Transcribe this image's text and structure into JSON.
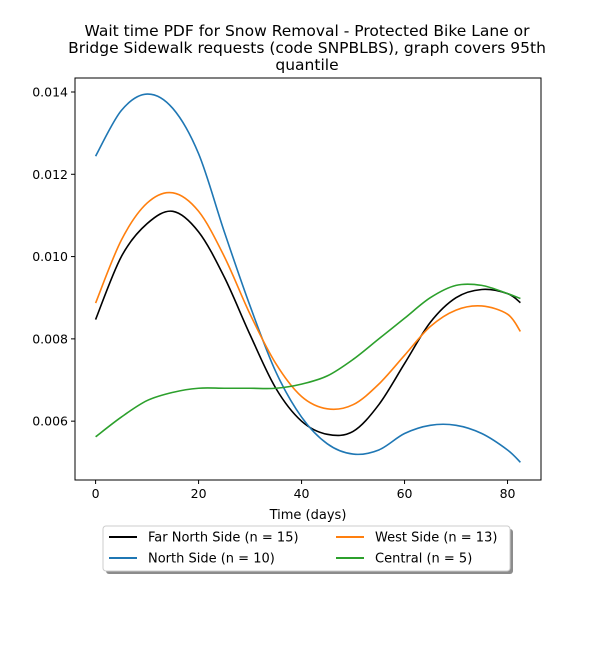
{
  "chart_data": {
    "type": "line",
    "title_lines": [
      "Wait time PDF for Snow Removal - Protected Bike Lane or",
      "Bridge Sidewalk  requests (code SNPBLBS), graph covers 95th",
      "quantile"
    ],
    "xlabel": "Time (days)",
    "ylabel": "",
    "xlim": [
      -4,
      86.5
    ],
    "ylim": [
      0.00457,
      0.01434
    ],
    "xticks": [
      0,
      20,
      40,
      60,
      80
    ],
    "yticks": [
      0.006,
      0.008,
      0.01,
      0.012,
      0.014
    ],
    "ytick_labels": [
      "0.006",
      "0.008",
      "0.010",
      "0.012",
      "0.014"
    ],
    "grid": false,
    "legend": {
      "placement": "below-center",
      "columns": 2
    },
    "x": [
      0,
      5,
      10,
      15,
      20,
      25,
      30,
      35,
      40,
      45,
      50,
      55,
      60,
      65,
      70,
      75,
      80,
      82.5
    ],
    "series": [
      {
        "name": "Far North Side (n = 15)",
        "color": "#000000",
        "values": [
          0.00847,
          0.01,
          0.0108,
          0.0111,
          0.0106,
          0.0095,
          0.0081,
          0.0068,
          0.006,
          0.00568,
          0.00575,
          0.0064,
          0.0074,
          0.0084,
          0.009,
          0.0092,
          0.0091,
          0.00888
        ]
      },
      {
        "name": "North Side (n = 10)",
        "color": "#1f77b4",
        "values": [
          0.01244,
          0.01355,
          0.01395,
          0.0136,
          0.0125,
          0.0106,
          0.0088,
          0.0072,
          0.0061,
          0.00545,
          0.0052,
          0.0053,
          0.0057,
          0.0059,
          0.0059,
          0.0057,
          0.0053,
          0.005
        ]
      },
      {
        "name": "West Side (n = 13)",
        "color": "#ff7f0e",
        "values": [
          0.00887,
          0.0104,
          0.0113,
          0.01155,
          0.0111,
          0.01,
          0.0086,
          0.0074,
          0.0066,
          0.0063,
          0.0064,
          0.0069,
          0.0076,
          0.0083,
          0.0087,
          0.0088,
          0.0086,
          0.00818
        ]
      },
      {
        "name": "Central (n = 5)",
        "color": "#2ca02c",
        "values": [
          0.00562,
          0.0061,
          0.0065,
          0.0067,
          0.0068,
          0.0068,
          0.0068,
          0.0068,
          0.0069,
          0.0071,
          0.0075,
          0.008,
          0.0085,
          0.009,
          0.0093,
          0.0093,
          0.0091,
          0.00898
        ]
      }
    ]
  }
}
